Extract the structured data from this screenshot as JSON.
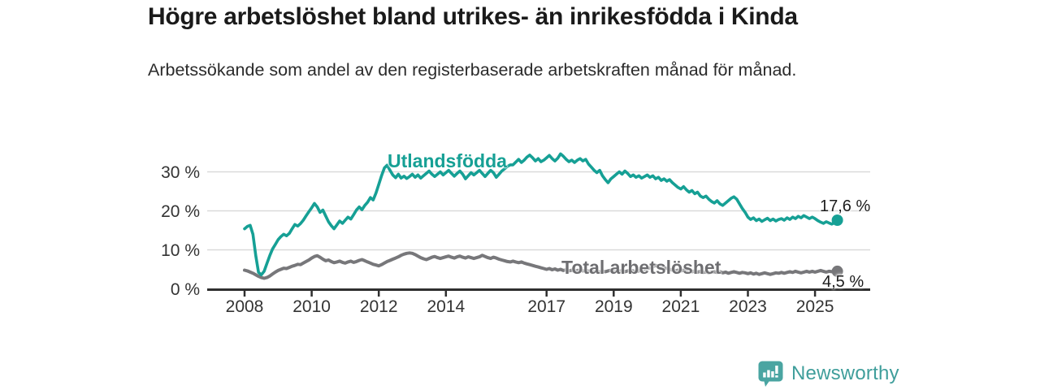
{
  "header": {
    "title": "Högre arbetslöshet bland utrikes- än inrikesfödda i Kinda",
    "subtitle": "Arbetssökande som andel av den registerbaserade arbetskraften månad för månad."
  },
  "footer": {
    "brand": "Newsworthy",
    "brand_color": "#3f9e9b",
    "logo_icon": "bar-chart-speech-bubble"
  },
  "colors": {
    "foreign_born_line": "#16a095",
    "total_line": "#77777a",
    "gridline": "#d9d9d9",
    "axis": "#2f2f2f",
    "text": "#333333"
  },
  "chart_data": {
    "type": "line",
    "title": "Högre arbetslöshet bland utrikes- än inrikesfödda i Kinda",
    "frequency": "monthly",
    "x_start": "2008-01",
    "x_end": "2025-09",
    "grid": true,
    "legend_position": "inline-labels",
    "y_axis": {
      "ticks": [
        0,
        10,
        20,
        30
      ],
      "tick_suffix": " %",
      "range": [
        0,
        36
      ]
    },
    "x_axis": {
      "tick_years": [
        2008,
        2010,
        2012,
        2014,
        2017,
        2019,
        2021,
        2023,
        2025
      ]
    },
    "series": [
      {
        "name": "Utlandsfödda",
        "color": "#16a095",
        "end_label": "17,6 %",
        "end_value": 17.6,
        "values": [
          15.4,
          16.0,
          16.3,
          14.0,
          8.5,
          4.2,
          3.6,
          4.5,
          6.5,
          8.5,
          10.2,
          11.4,
          12.6,
          13.4,
          14.0,
          13.6,
          14.2,
          15.4,
          16.5,
          16.1,
          16.7,
          17.6,
          18.7,
          19.8,
          20.8,
          21.9,
          21.0,
          19.6,
          20.2,
          18.7,
          17.2,
          16.2,
          15.4,
          16.4,
          17.4,
          16.8,
          17.6,
          18.4,
          17.9,
          19.0,
          20.2,
          21.0,
          20.3,
          21.4,
          22.2,
          23.4,
          22.8,
          24.6,
          26.8,
          29.0,
          31.0,
          31.7,
          30.4,
          29.2,
          28.5,
          29.4,
          28.4,
          28.9,
          28.3,
          28.8,
          29.4,
          28.6,
          29.2,
          28.4,
          29.0,
          29.6,
          30.2,
          29.4,
          28.8,
          29.4,
          30.0,
          29.2,
          29.8,
          30.4,
          29.6,
          28.9,
          29.6,
          30.2,
          29.4,
          28.2,
          29.0,
          29.8,
          29.2,
          29.8,
          30.4,
          29.6,
          28.8,
          29.6,
          30.4,
          29.8,
          28.6,
          29.4,
          30.2,
          30.8,
          31.4,
          31.8,
          31.8,
          32.5,
          33.2,
          32.4,
          33.0,
          33.8,
          34.3,
          33.6,
          32.8,
          33.4,
          32.6,
          33.0,
          33.6,
          34.2,
          33.4,
          32.8,
          33.5,
          34.6,
          34.0,
          33.2,
          32.6,
          33.0,
          32.4,
          33.0,
          33.4,
          32.8,
          33.2,
          32.0,
          31.2,
          30.4,
          29.8,
          30.4,
          29.0,
          28.0,
          27.2,
          28.2,
          28.8,
          29.4,
          30.0,
          29.4,
          30.2,
          29.6,
          28.8,
          29.2,
          28.6,
          29.0,
          28.4,
          28.8,
          29.2,
          28.6,
          29.0,
          28.2,
          28.6,
          27.8,
          28.2,
          27.6,
          28.0,
          27.2,
          26.6,
          26.0,
          25.6,
          26.2,
          25.4,
          24.8,
          25.2,
          24.4,
          24.8,
          23.8,
          23.4,
          23.8,
          23.0,
          22.4,
          22.0,
          22.6,
          21.8,
          21.4,
          22.0,
          22.6,
          23.2,
          23.6,
          23.0,
          21.8,
          20.6,
          19.6,
          18.4,
          17.8,
          18.2,
          17.5,
          17.9,
          17.3,
          17.7,
          18.1,
          17.5,
          17.9,
          17.4,
          17.8,
          18.0,
          17.6,
          18.2,
          17.8,
          18.4,
          18.0,
          18.6,
          18.2,
          18.8,
          18.4,
          18.0,
          18.4,
          18.0,
          17.5,
          17.1,
          16.8,
          17.2,
          16.9,
          16.6,
          17.0,
          17.6
        ]
      },
      {
        "name": "Total arbetslöshet",
        "color": "#77777a",
        "end_label": "4,5 %",
        "end_value": 4.5,
        "values": [
          4.8,
          4.6,
          4.3,
          4.0,
          3.6,
          3.2,
          2.9,
          2.7,
          2.9,
          3.3,
          3.8,
          4.3,
          4.7,
          5.0,
          5.3,
          5.2,
          5.5,
          5.8,
          6.0,
          6.3,
          6.2,
          6.6,
          7.0,
          7.4,
          7.9,
          8.3,
          8.5,
          8.1,
          7.6,
          7.2,
          7.4,
          7.0,
          6.7,
          6.9,
          7.1,
          6.8,
          6.6,
          6.9,
          7.1,
          6.8,
          7.0,
          7.3,
          7.5,
          7.2,
          6.9,
          6.6,
          6.3,
          6.1,
          5.9,
          6.2,
          6.6,
          7.0,
          7.3,
          7.6,
          7.9,
          8.2,
          8.6,
          8.9,
          9.1,
          9.2,
          9.1,
          8.8,
          8.4,
          8.0,
          7.7,
          7.5,
          7.8,
          8.1,
          8.3,
          8.0,
          7.8,
          8.0,
          8.2,
          8.4,
          8.1,
          7.9,
          8.2,
          8.4,
          8.1,
          7.9,
          8.2,
          8.0,
          7.8,
          8.0,
          8.2,
          8.6,
          8.3,
          8.0,
          7.8,
          8.1,
          7.9,
          7.6,
          7.4,
          7.2,
          7.0,
          6.9,
          7.1,
          6.9,
          6.7,
          6.9,
          6.6,
          6.4,
          6.2,
          6.0,
          5.8,
          5.6,
          5.4,
          5.2,
          5.0,
          5.2,
          4.9,
          5.1,
          4.8,
          5.0,
          4.7,
          4.9,
          4.6,
          4.8,
          4.5,
          4.7,
          4.8,
          4.6,
          4.8,
          4.5,
          4.7,
          4.4,
          4.6,
          4.3,
          4.5,
          4.4,
          4.6,
          4.8,
          4.6,
          4.8,
          4.5,
          4.7,
          4.4,
          4.6,
          4.8,
          4.6,
          4.4,
          4.6,
          4.8,
          5.0,
          5.2,
          5.4,
          5.7,
          6.0,
          5.8,
          5.6,
          5.4,
          5.2,
          5.0,
          4.8,
          4.6,
          4.8,
          4.6,
          4.8,
          4.5,
          4.7,
          4.4,
          4.6,
          4.3,
          4.5,
          4.2,
          4.4,
          4.1,
          4.3,
          4.4,
          4.2,
          4.4,
          4.1,
          4.3,
          4.0,
          4.2,
          4.4,
          4.2,
          4.0,
          4.2,
          4.1,
          3.9,
          4.1,
          3.8,
          4.0,
          3.7,
          3.9,
          4.1,
          3.9,
          3.7,
          3.9,
          4.1,
          4.0,
          4.2,
          4.0,
          4.2,
          4.4,
          4.2,
          4.5,
          4.3,
          4.1,
          4.3,
          4.5,
          4.3,
          4.5,
          4.3,
          4.5,
          4.7,
          4.5,
          4.3,
          4.5,
          4.4,
          4.6,
          4.5
        ]
      }
    ]
  }
}
